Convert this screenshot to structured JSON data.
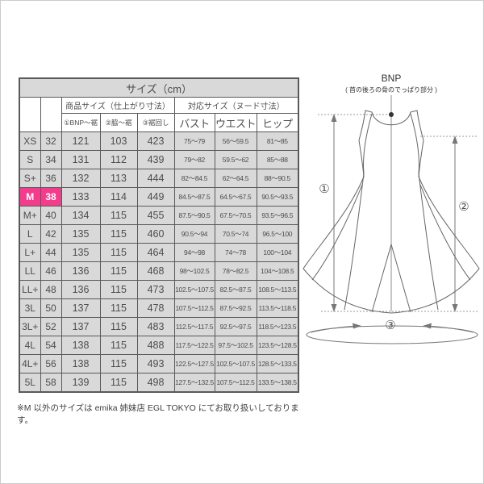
{
  "table": {
    "title": "サイズ（cm）",
    "group_headers": {
      "product": "商品サイズ（仕上がり寸法）",
      "nude": "対応サイズ（ヌード寸法）"
    },
    "sub_headers": [
      "①BNP～裾",
      "②脇～裾",
      "③裾回し",
      "バスト",
      "ウエスト",
      "ヒップ"
    ],
    "rows": [
      {
        "label": "XS",
        "num": "32",
        "values": [
          "121",
          "103",
          "423",
          "75～79",
          "56～59.5",
          "81～85"
        ],
        "highlight": false
      },
      {
        "label": "S",
        "num": "34",
        "values": [
          "131",
          "112",
          "439",
          "79～82",
          "59.5～62",
          "85～88"
        ],
        "highlight": false
      },
      {
        "label": "S+",
        "num": "36",
        "values": [
          "132",
          "113",
          "444",
          "82～84.5",
          "62～64.5",
          "88～90.5"
        ],
        "highlight": false
      },
      {
        "label": "M",
        "num": "38",
        "values": [
          "133",
          "114",
          "449",
          "84.5～87.5",
          "64.5～67.5",
          "90.5～93.5"
        ],
        "highlight": true
      },
      {
        "label": "M+",
        "num": "40",
        "values": [
          "134",
          "115",
          "455",
          "87.5～90.5",
          "67.5～70.5",
          "93.5～96.5"
        ],
        "highlight": false
      },
      {
        "label": "L",
        "num": "42",
        "values": [
          "135",
          "115",
          "460",
          "90.5～94",
          "70.5～74",
          "96.5～100"
        ],
        "highlight": false
      },
      {
        "label": "L+",
        "num": "44",
        "values": [
          "135",
          "115",
          "464",
          "94～98",
          "74～78",
          "100～104"
        ],
        "highlight": false
      },
      {
        "label": "LL",
        "num": "46",
        "values": [
          "136",
          "115",
          "468",
          "98～102.5",
          "78～82.5",
          "104～108.5"
        ],
        "highlight": false
      },
      {
        "label": "LL+",
        "num": "48",
        "values": [
          "136",
          "115",
          "473",
          "102.5～107.5",
          "82.5～87.5",
          "108.5～113.5"
        ],
        "highlight": false
      },
      {
        "label": "3L",
        "num": "50",
        "values": [
          "137",
          "115",
          "478",
          "107.5～112.5",
          "87.5～92.5",
          "113.5～118.5"
        ],
        "highlight": false
      },
      {
        "label": "3L+",
        "num": "52",
        "values": [
          "137",
          "115",
          "483",
          "112.5～117.5",
          "92.5～97.5",
          "118.5～123.5"
        ],
        "highlight": false
      },
      {
        "label": "4L",
        "num": "54",
        "values": [
          "138",
          "115",
          "488",
          "117.5～122.5",
          "97.5～102.5",
          "123.5～128.5"
        ],
        "highlight": false
      },
      {
        "label": "4L+",
        "num": "56",
        "values": [
          "138",
          "115",
          "493",
          "122.5～127.5",
          "102.5～107.5",
          "128.5～133.5"
        ],
        "highlight": false
      },
      {
        "label": "5L",
        "num": "58",
        "values": [
          "139",
          "115",
          "498",
          "127.5～132.5",
          "107.5～112.5",
          "133.5～138.5"
        ],
        "highlight": false
      }
    ]
  },
  "note": "※M 以外のサイズは emika 姉妹店 EGL TOKYO にてお取り扱いしております。",
  "diagram": {
    "bnp_label": "BNP",
    "bnp_note": "( 首の後ろの骨のでっぱり部分 )",
    "marker1": "①",
    "marker2": "②",
    "marker3": "③"
  },
  "colors": {
    "highlight_pink": "#f43c8c",
    "cell_gray": "#d9d9d9",
    "border_gray": "#595959",
    "text_gray": "#404040"
  }
}
